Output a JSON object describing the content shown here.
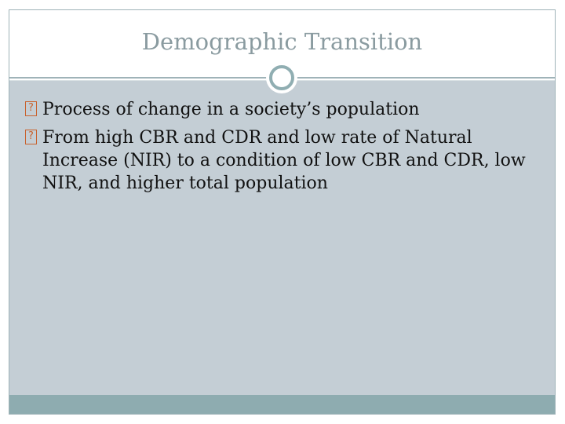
{
  "slide": {
    "title": "Demographic Transition",
    "bullet_glyph": "?",
    "bullets": [
      {
        "text": "Process of change in a society’s population"
      },
      {
        "text": "From high CBR and CDR and low rate of Natural Increase (NIR) to a condition of low CBR and CDR, low NIR, and higher total population"
      }
    ]
  },
  "colors": {
    "title": "#8a9ba0",
    "content_background": "#c4ced5",
    "accent": "#90aeb2",
    "bullet_glyph": "#c9622d",
    "text": "#111111"
  },
  "icons": {
    "divider": "ring-icon",
    "bullet": "missing-glyph-icon"
  }
}
